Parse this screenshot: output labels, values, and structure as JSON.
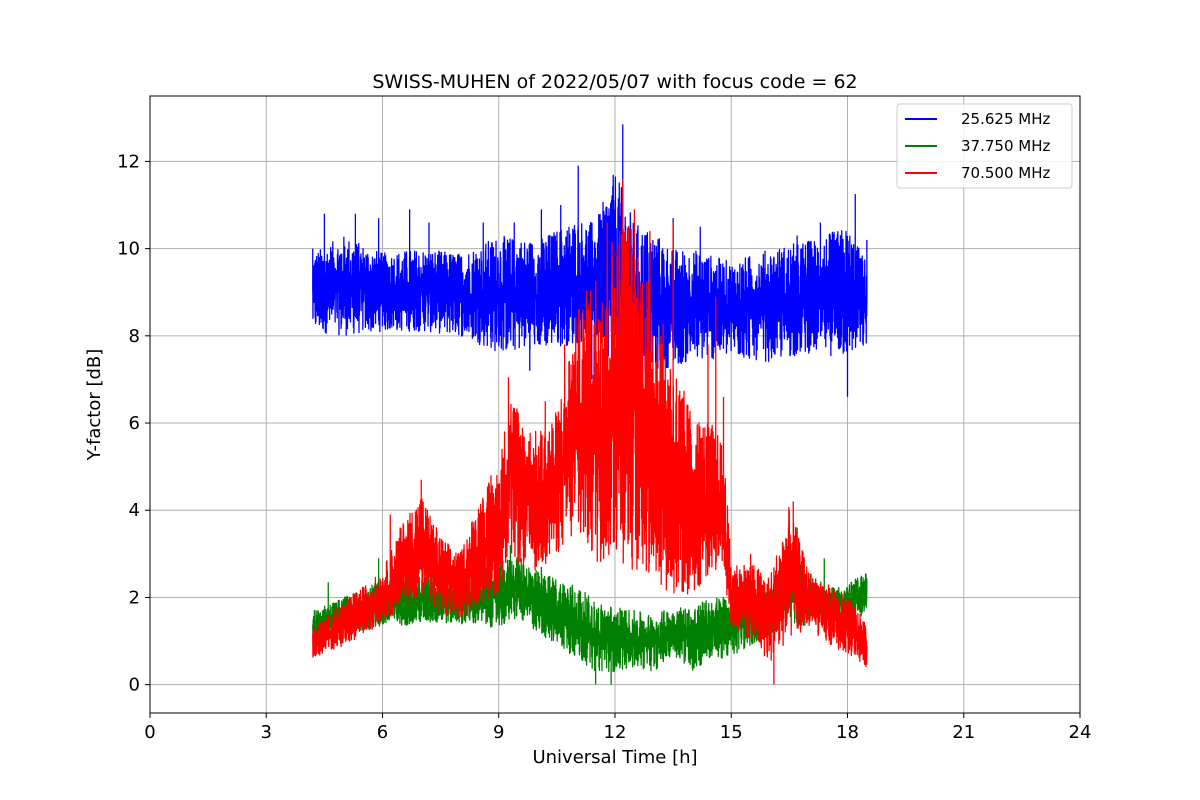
{
  "chart_data": {
    "type": "line",
    "title": "SWISS-MUHEN of 2022/05/07 with focus code = 62",
    "xlabel": "Universal Time [h]",
    "ylabel": "Y-factor [dB]",
    "xlim": [
      0,
      24
    ],
    "ylim": [
      -0.65,
      13.5
    ],
    "xticks": [
      "0",
      "3",
      "6",
      "9",
      "12",
      "15",
      "18",
      "21",
      "24"
    ],
    "yticks": [
      "0",
      "2",
      "4",
      "6",
      "8",
      "10",
      "12"
    ],
    "grid": true,
    "legend_position": "top-right",
    "series": [
      {
        "name": "25.625 MHz",
        "color": "#0000ff",
        "x": [
          4.2,
          5.0,
          6.0,
          7.0,
          8.0,
          9.0,
          10.0,
          11.0,
          11.5,
          12.0,
          12.5,
          13.0,
          13.5,
          14.0,
          15.0,
          16.0,
          17.0,
          18.0,
          18.5
        ],
        "low": [
          8.1,
          8.0,
          8.1,
          8.1,
          8.0,
          7.6,
          7.7,
          7.8,
          7.9,
          7.3,
          7.0,
          7.2,
          7.3,
          7.4,
          7.5,
          7.4,
          7.6,
          7.5,
          7.7
        ],
        "high": [
          9.9,
          10.3,
          9.9,
          10.0,
          9.9,
          10.3,
          10.2,
          10.7,
          10.6,
          11.8,
          10.6,
          10.4,
          10.0,
          10.0,
          9.7,
          10.0,
          10.2,
          10.5,
          9.7
        ],
        "spikes": [
          [
            4.2,
            10.0
          ],
          [
            4.5,
            10.8
          ],
          [
            5.3,
            10.8
          ],
          [
            5.9,
            10.7
          ],
          [
            6.7,
            10.9
          ],
          [
            7.2,
            10.6
          ],
          [
            8.6,
            10.6
          ],
          [
            9.4,
            10.6
          ],
          [
            10.1,
            10.9
          ],
          [
            10.6,
            11.0
          ],
          [
            11.05,
            11.9
          ],
          [
            12.2,
            12.85
          ],
          [
            12.4,
            10.6
          ],
          [
            13.5,
            10.7
          ],
          [
            14.2,
            10.5
          ],
          [
            16.7,
            10.3
          ],
          [
            17.3,
            10.6
          ],
          [
            18.2,
            11.25
          ],
          [
            18.5,
            10.2
          ],
          [
            18.0,
            6.6
          ],
          [
            9.8,
            7.2
          ],
          [
            11.4,
            7.0
          ]
        ]
      },
      {
        "name": "37.750 MHz",
        "color": "#008000",
        "x": [
          4.2,
          5.0,
          6.0,
          7.0,
          8.0,
          9.0,
          9.5,
          10.0,
          11.0,
          11.5,
          12.0,
          12.5,
          13.0,
          13.5,
          14.0,
          14.5,
          15.0,
          15.5,
          16.0,
          16.5,
          17.0,
          17.5,
          18.0,
          18.5
        ],
        "low": [
          0.9,
          1.2,
          1.3,
          1.4,
          1.4,
          1.3,
          1.5,
          1.2,
          0.6,
          0.3,
          0.3,
          0.4,
          0.3,
          0.7,
          0.3,
          0.6,
          0.6,
          0.9,
          1.1,
          1.4,
          1.3,
          1.5,
          1.5,
          1.6
        ],
        "high": [
          1.7,
          2.0,
          2.4,
          2.5,
          2.4,
          2.8,
          3.0,
          2.6,
          2.3,
          1.9,
          1.8,
          1.7,
          1.6,
          1.8,
          1.8,
          2.0,
          2.1,
          2.2,
          2.1,
          3.2,
          2.6,
          2.2,
          2.3,
          2.6
        ],
        "spikes": [
          [
            4.6,
            2.35
          ],
          [
            5.9,
            2.9
          ],
          [
            6.8,
            2.7
          ],
          [
            9.3,
            3.2
          ],
          [
            10.1,
            2.7
          ],
          [
            11.5,
            0.0
          ],
          [
            11.9,
            0.0
          ],
          [
            16.7,
            3.6
          ],
          [
            17.4,
            2.9
          ]
        ]
      },
      {
        "name": "70.500 MHz",
        "color": "#ff0000",
        "x": [
          4.2,
          5.0,
          6.0,
          6.5,
          7.0,
          7.5,
          8.0,
          8.5,
          9.0,
          9.3,
          9.7,
          10.0,
          10.5,
          11.0,
          11.5,
          12.0,
          12.3,
          12.6,
          13.0,
          13.5,
          14.0,
          14.5,
          14.8,
          15.0,
          15.5,
          16.0,
          16.5,
          17.0,
          17.5,
          18.0,
          18.5
        ],
        "low": [
          0.6,
          0.9,
          1.4,
          1.7,
          2.0,
          1.6,
          1.5,
          1.8,
          2.1,
          2.9,
          2.6,
          2.6,
          3.0,
          3.3,
          2.7,
          2.9,
          2.7,
          2.5,
          2.4,
          2.0,
          2.0,
          2.6,
          2.6,
          1.3,
          1.0,
          0.5,
          1.0,
          1.3,
          0.9,
          0.7,
          0.4
        ],
        "high": [
          1.3,
          1.9,
          2.6,
          3.7,
          4.4,
          3.4,
          3.0,
          4.3,
          5.0,
          6.8,
          6.0,
          5.8,
          6.3,
          8.5,
          9.6,
          10.5,
          10.9,
          10.2,
          9.0,
          7.5,
          6.2,
          6.0,
          5.5,
          2.8,
          2.8,
          2.5,
          4.1,
          2.6,
          2.3,
          2.0,
          1.4
        ],
        "spikes": [
          [
            6.2,
            3.9
          ],
          [
            7.0,
            4.7
          ],
          [
            8.8,
            4.8
          ],
          [
            9.25,
            7.05
          ],
          [
            10.2,
            6.5
          ],
          [
            10.7,
            7.8
          ],
          [
            11.3,
            8.6
          ],
          [
            11.8,
            10.6
          ],
          [
            12.2,
            11.6
          ],
          [
            12.5,
            10.9
          ],
          [
            12.9,
            10.4
          ],
          [
            13.5,
            10.6
          ],
          [
            14.4,
            7.8
          ],
          [
            14.6,
            8.9
          ],
          [
            14.8,
            6.6
          ],
          [
            15.5,
            3.0
          ],
          [
            16.1,
            0.0
          ],
          [
            16.6,
            4.2
          ]
        ]
      }
    ]
  }
}
